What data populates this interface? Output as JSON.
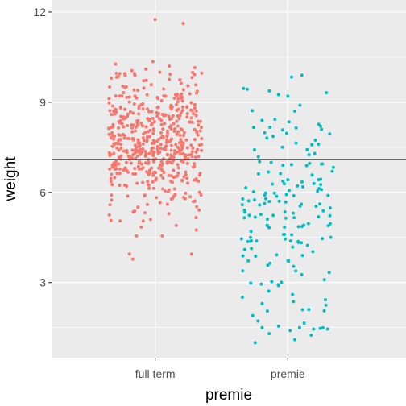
{
  "chart_data": {
    "type": "scatter",
    "title": "",
    "xlabel": "premie",
    "ylabel": "weight",
    "categories": [
      "full term",
      "premie"
    ],
    "ylim": [
      0.5,
      12.4
    ],
    "yticks": [
      3,
      6,
      9,
      12
    ],
    "ytick_labels": [
      "3",
      "6",
      "9",
      "12"
    ],
    "reference_line": {
      "y": 7.1,
      "color": "#595959"
    },
    "colors": {
      "full term": "#F8766D",
      "premie": "#00BFC4",
      "panel": "#EBEBEB",
      "grid": "#FFFFFF"
    },
    "grid": true,
    "legend": "none",
    "jitter_width": 0.4,
    "series": [
      {
        "category": "full term",
        "points": [
          [
            0.0,
            11.75
          ],
          [
            0.6,
            11.62
          ],
          [
            -0.05,
            10.35
          ],
          [
            -0.85,
            10.27
          ],
          [
            0.85,
            10.15
          ],
          [
            0.3,
            10.2
          ],
          [
            -0.5,
            10.05
          ],
          [
            -0.2,
            10.1
          ],
          [
            0.1,
            10.0
          ],
          [
            -0.65,
            9.95
          ],
          [
            -0.55,
            3.95
          ],
          [
            -0.48,
            3.78
          ],
          [
            0.78,
            3.95
          ],
          [
            -0.4,
            4.55
          ],
          [
            0.15,
            4.55
          ],
          [
            0.88,
            4.75
          ],
          [
            -0.75,
            5.05
          ],
          [
            -0.3,
            4.85
          ],
          [
            0.45,
            4.9
          ],
          [
            -0.1,
            5.1
          ]
        ],
        "min_weight": 3.78,
        "max_weight": 11.75,
        "bulk_y_min": 5.0,
        "bulk_y_max": 10.0,
        "bulk_center": 7.6,
        "bulk_spread": 1.1,
        "n_points": 520
      },
      {
        "category": "premie",
        "points": [
          [
            0.3,
            9.9
          ],
          [
            -0.2,
            9.25
          ],
          [
            0.0,
            9.2
          ],
          [
            0.15,
            8.7
          ],
          [
            0.7,
            8.2
          ],
          [
            -0.8,
            4.5
          ],
          [
            -0.55,
            2.3
          ],
          [
            -0.2,
            2.9
          ],
          [
            0.1,
            2.6
          ],
          [
            0.45,
            2.1
          ],
          [
            -0.75,
            1.9
          ],
          [
            -0.55,
            1.5
          ],
          [
            -0.4,
            1.3
          ],
          [
            -0.2,
            1.55
          ],
          [
            0.05,
            1.4
          ],
          [
            0.25,
            1.5
          ],
          [
            0.35,
            1.65
          ],
          [
            0.55,
            1.45
          ],
          [
            0.75,
            1.5
          ],
          [
            -0.7,
            1.0
          ],
          [
            0.5,
            1.25
          ],
          [
            0.85,
            1.45
          ],
          [
            0.15,
            1.1
          ]
        ],
        "min_weight": 1.0,
        "max_weight": 9.9,
        "bulk_y_min": 1.0,
        "bulk_y_max": 9.9,
        "bulk_center": 5.5,
        "bulk_spread": 1.8,
        "n_points": 160
      }
    ]
  }
}
